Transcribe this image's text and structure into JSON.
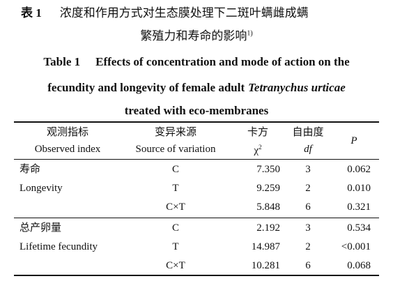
{
  "caption": {
    "zh_label": "表 1",
    "zh_lines": [
      "浓度和作用方式对生态膜处理下二斑叶螨雌成螨",
      "繁殖力和寿命的影响"
    ],
    "zh_note": "1)",
    "en_label": "Table 1",
    "en_line1": "Effects of concentration and mode of action on the",
    "en_line2_start": "fecundity and longevity of female adult",
    "en_line2_italic": "Tetranychus urticae",
    "en_line3": "treated with eco-membranes"
  },
  "table": {
    "headers": [
      {
        "zh": "观测指标",
        "en": "Observed index"
      },
      {
        "zh": "变异来源",
        "en": "Source of variation"
      },
      {
        "zh": "卡方",
        "en": "χ",
        "sup": "2"
      },
      {
        "zh": "自由度",
        "en": "df"
      },
      {
        "en": "P"
      }
    ],
    "groups": [
      {
        "label_zh": "寿命",
        "label_en": "Longevity",
        "rows": [
          [
            "C",
            "7.350",
            "3",
            "0.062"
          ],
          [
            "T",
            "9.259",
            "2",
            "0.010"
          ],
          [
            "C×T",
            "5.848",
            "6",
            "0.321"
          ]
        ]
      },
      {
        "label_zh": "总产卵量",
        "label_en": "Lifetime fecundity",
        "rows": [
          [
            "C",
            "2.192",
            "3",
            "0.534"
          ],
          [
            "T",
            "14.987",
            "2",
            "<0.001"
          ],
          [
            "C×T",
            "10.281",
            "6",
            "0.068"
          ]
        ]
      }
    ]
  }
}
